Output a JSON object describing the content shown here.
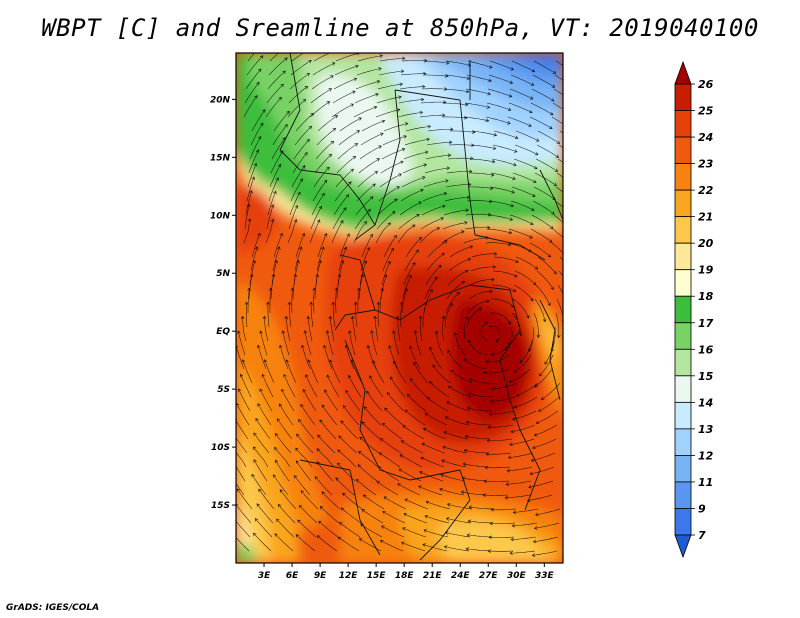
{
  "title": "WBPT [C] and Sreamline at 850hPa, VT: 2019040100",
  "credit": "GrADS: IGES/COLA",
  "map": {
    "variable": "WBPT",
    "unit": "C",
    "level": "850hPa",
    "valid_time": "2019040100",
    "lat_range": [
      -20,
      24
    ],
    "lon_range": [
      0,
      35
    ],
    "lat_ticks": [
      "20N",
      "15N",
      "10N",
      "5N",
      "EQ",
      "5S",
      "10S",
      "15S"
    ],
    "lon_ticks": [
      "3E",
      "6E",
      "9E",
      "12E",
      "15E",
      "18E",
      "21E",
      "24E",
      "27E",
      "30E",
      "33E"
    ]
  },
  "colorbar": {
    "labels": [
      "26",
      "25",
      "24",
      "23",
      "22",
      "21",
      "20",
      "19",
      "18",
      "17",
      "16",
      "15",
      "14",
      "13",
      "12",
      "11",
      "9",
      "7"
    ],
    "colors": [
      "#a50000",
      "#c81e00",
      "#e6410a",
      "#f05a0f",
      "#f7820f",
      "#faa51e",
      "#fdc84b",
      "#fde79b",
      "#ffffd2",
      "#3cbe3c",
      "#78d264",
      "#b4e6a0",
      "#ebf8f0",
      "#c8ebff",
      "#a0d2ff",
      "#78b4f5",
      "#5a96f0",
      "#3c78eb",
      "#1e5ad2"
    ]
  }
}
